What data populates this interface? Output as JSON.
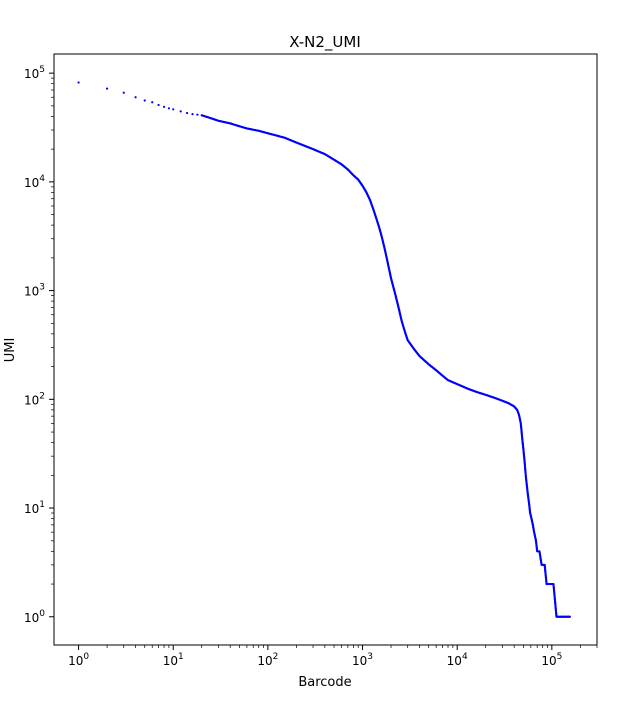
{
  "chart_data": {
    "type": "scatter",
    "title": "X-N2_UMI",
    "xlabel": "Barcode",
    "ylabel": "UMI",
    "xscale": "log",
    "yscale": "log",
    "xlim": [
      0.55,
      300000
    ],
    "ylim": [
      0.55,
      150000
    ],
    "grid": false,
    "legend": "none",
    "marker_color": "#0000ff",
    "x_ticks": [
      {
        "value": 1,
        "base": "10",
        "exp": "0"
      },
      {
        "value": 10,
        "base": "10",
        "exp": "1"
      },
      {
        "value": 100,
        "base": "10",
        "exp": "2"
      },
      {
        "value": 1000,
        "base": "10",
        "exp": "3"
      },
      {
        "value": 10000,
        "base": "10",
        "exp": "4"
      },
      {
        "value": 100000,
        "base": "10",
        "exp": "5"
      }
    ],
    "y_ticks": [
      {
        "value": 1,
        "base": "10",
        "exp": "0"
      },
      {
        "value": 10,
        "base": "10",
        "exp": "1"
      },
      {
        "value": 100,
        "base": "10",
        "exp": "2"
      },
      {
        "value": 1000,
        "base": "10",
        "exp": "3"
      },
      {
        "value": 10000,
        "base": "10",
        "exp": "4"
      },
      {
        "value": 100000,
        "base": "10",
        "exp": "5"
      }
    ],
    "series": [
      {
        "points": [
          [
            1,
            82000
          ],
          [
            2,
            72000
          ],
          [
            3,
            66000
          ],
          [
            4,
            60000
          ],
          [
            5,
            56000
          ],
          [
            6,
            54000
          ],
          [
            7,
            51000
          ],
          [
            8,
            49000
          ],
          [
            9,
            47500
          ],
          [
            10,
            46500
          ],
          [
            12,
            44500
          ],
          [
            14,
            43000
          ],
          [
            16,
            42000
          ],
          [
            18,
            41500
          ],
          [
            20,
            41000
          ],
          [
            25,
            38500
          ],
          [
            30,
            36500
          ],
          [
            40,
            34500
          ],
          [
            50,
            32500
          ],
          [
            60,
            31000
          ],
          [
            80,
            29500
          ],
          [
            100,
            28000
          ],
          [
            150,
            25500
          ],
          [
            200,
            23000
          ],
          [
            300,
            20000
          ],
          [
            400,
            18000
          ],
          [
            500,
            16000
          ],
          [
            600,
            14500
          ],
          [
            700,
            13000
          ],
          [
            800,
            11500
          ],
          [
            900,
            10500
          ],
          [
            1000,
            9200
          ],
          [
            1100,
            8000
          ],
          [
            1200,
            6800
          ],
          [
            1300,
            5600
          ],
          [
            1400,
            4600
          ],
          [
            1500,
            3800
          ],
          [
            1600,
            3100
          ],
          [
            1700,
            2500
          ],
          [
            1800,
            2000
          ],
          [
            1900,
            1600
          ],
          [
            2000,
            1300
          ],
          [
            2200,
            950
          ],
          [
            2400,
            700
          ],
          [
            2600,
            520
          ],
          [
            2800,
            420
          ],
          [
            3000,
            350
          ],
          [
            3500,
            290
          ],
          [
            4000,
            250
          ],
          [
            5000,
            210
          ],
          [
            6000,
            185
          ],
          [
            7000,
            165
          ],
          [
            8000,
            150
          ],
          [
            10000,
            138
          ],
          [
            13000,
            125
          ],
          [
            16000,
            117
          ],
          [
            20000,
            110
          ],
          [
            25000,
            103
          ],
          [
            30000,
            97
          ],
          [
            35000,
            92
          ],
          [
            40000,
            86
          ],
          [
            43000,
            80
          ],
          [
            45000,
            72
          ],
          [
            47000,
            60
          ],
          [
            48500,
            45
          ],
          [
            50000,
            35
          ],
          [
            51500,
            27
          ],
          [
            53000,
            20
          ],
          [
            54500,
            16
          ],
          [
            56000,
            13
          ],
          [
            57500,
            11
          ],
          [
            59000,
            9
          ],
          [
            61000,
            8
          ],
          [
            63000,
            7
          ],
          [
            65000,
            6
          ],
          [
            68000,
            5
          ],
          [
            70000,
            4
          ],
          [
            72000,
            4
          ],
          [
            74000,
            4
          ],
          [
            78000,
            3
          ],
          [
            80000,
            3
          ],
          [
            82000,
            3
          ],
          [
            84000,
            3
          ],
          [
            88000,
            2
          ],
          [
            92000,
            2
          ],
          [
            96000,
            2
          ],
          [
            100000,
            2
          ],
          [
            104000,
            2
          ],
          [
            112000,
            1
          ],
          [
            120000,
            1
          ],
          [
            128000,
            1
          ],
          [
            136000,
            1
          ],
          [
            145000,
            1
          ],
          [
            155000,
            1
          ]
        ]
      }
    ]
  }
}
